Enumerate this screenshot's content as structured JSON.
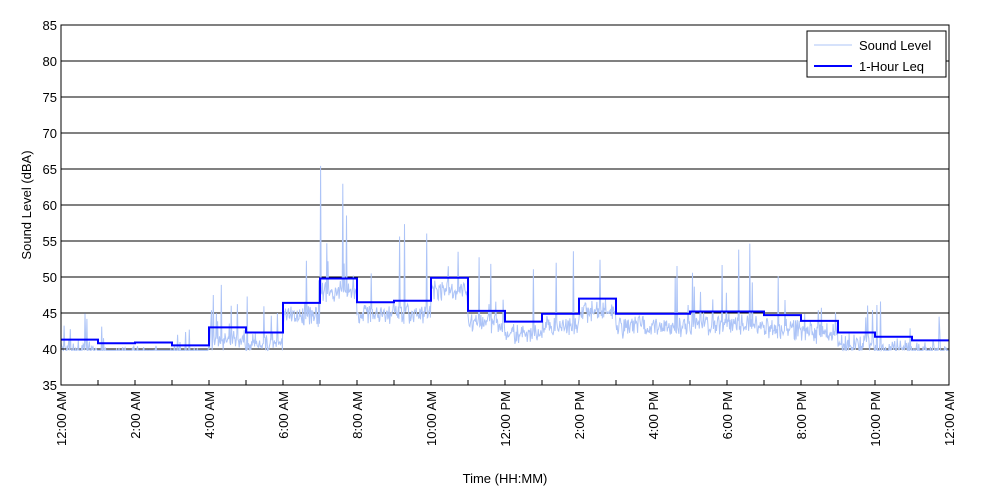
{
  "chart_data": {
    "type": "line",
    "xlabel": "Time (HH:MM)",
    "ylabel": "Sound Level (dBA)",
    "xlim_hours": [
      0,
      24
    ],
    "ylim": [
      35,
      85
    ],
    "yticks": [
      35,
      40,
      45,
      50,
      55,
      60,
      65,
      70,
      75,
      80,
      85
    ],
    "xtick_labels": [
      "12:00 AM",
      "2:00 AM",
      "4:00 AM",
      "6:00 AM",
      "8:00 AM",
      "10:00 AM",
      "12:00 PM",
      "2:00 PM",
      "4:00 PM",
      "6:00 PM",
      "8:00 PM",
      "10:00 PM",
      "12:00 AM"
    ],
    "grid": "horizontal",
    "legend_placement": "top-right",
    "series": [
      {
        "name": "Sound Level",
        "color": "#adc4f7",
        "kind": "raw trace"
      },
      {
        "name": "1-Hour Leq",
        "color": "#0000ff",
        "kind": "step",
        "hours": [
          0,
          1,
          2,
          3,
          4,
          5,
          6,
          7,
          8,
          9,
          10,
          11,
          12,
          13,
          14,
          15,
          16,
          17,
          18,
          19,
          20,
          21,
          22,
          23
        ],
        "values": [
          41.3,
          40.8,
          40.9,
          40.5,
          43.0,
          42.3,
          46.4,
          49.8,
          46.5,
          46.7,
          49.9,
          45.3,
          43.8,
          44.9,
          47.0,
          44.9,
          44.9,
          45.2,
          45.2,
          44.7,
          43.9,
          42.3,
          41.7,
          41.2
        ]
      }
    ]
  }
}
